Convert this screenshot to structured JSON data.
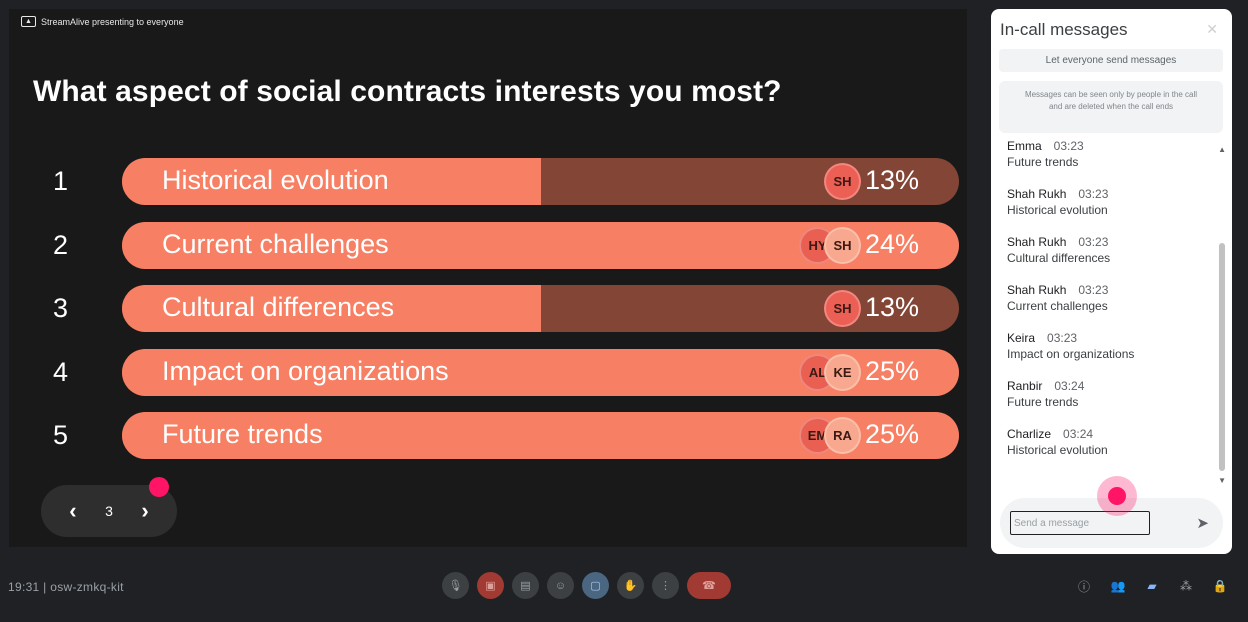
{
  "presentation": {
    "presenting_label": "StreamAlive presenting to everyone",
    "question": "What aspect of social contracts interests you most?",
    "options": [
      {
        "number": "1",
        "label": "Historical evolution",
        "percent": "13%",
        "fill": 0.5,
        "avatars": [
          "SH"
        ]
      },
      {
        "number": "2",
        "label": "Current challenges",
        "percent": "24%",
        "fill": 1.0,
        "avatars": [
          "HY",
          "SH"
        ]
      },
      {
        "number": "3",
        "label": "Cultural differences",
        "percent": "13%",
        "fill": 0.5,
        "avatars": [
          "SH"
        ]
      },
      {
        "number": "4",
        "label": "Impact on organizations",
        "percent": "25%",
        "fill": 1.0,
        "avatars": [
          "AL",
          "KE"
        ]
      },
      {
        "number": "5",
        "label": "Future trends",
        "percent": "25%",
        "fill": 1.0,
        "avatars": [
          "EM",
          "RA"
        ]
      }
    ],
    "pager": {
      "prev_icon": "chevron-left-icon",
      "page": "3",
      "next_icon": "chevron-right-icon"
    },
    "colors": {
      "bar_fill": "#f77f63",
      "bar_track": "#834536",
      "accent": "#ff1466"
    }
  },
  "chat": {
    "title": "In-call messages",
    "toggle_label": "Let everyone send messages",
    "info": "Messages can be seen only by people in the call and are deleted when the call ends",
    "messages": [
      {
        "sender": "Emma",
        "time": "03:23",
        "text": "Future trends"
      },
      {
        "sender": "Shah Rukh",
        "time": "03:23",
        "text": "Historical evolution"
      },
      {
        "sender": "Shah Rukh",
        "time": "03:23",
        "text": "Cultural differences"
      },
      {
        "sender": "Shah Rukh",
        "time": "03:23",
        "text": "Current challenges"
      },
      {
        "sender": "Keira",
        "time": "03:23",
        "text": "Impact on organizations"
      },
      {
        "sender": "Ranbir",
        "time": "03:24",
        "text": "Future trends"
      },
      {
        "sender": "Charlize",
        "time": "03:24",
        "text": "Historical evolution"
      }
    ],
    "input_placeholder": "Send a message"
  },
  "bottombar": {
    "meeting_info": "19:31 | osw-zmkq-kit",
    "controls": [
      "mic-icon",
      "camera-off-icon",
      "captions-icon",
      "emoji-icon",
      "present-icon",
      "hand-icon",
      "more-icon",
      "end-call-icon"
    ],
    "right_icons": [
      "info-icon",
      "people-icon",
      "chat-icon",
      "activities-icon",
      "lock-icon"
    ]
  }
}
